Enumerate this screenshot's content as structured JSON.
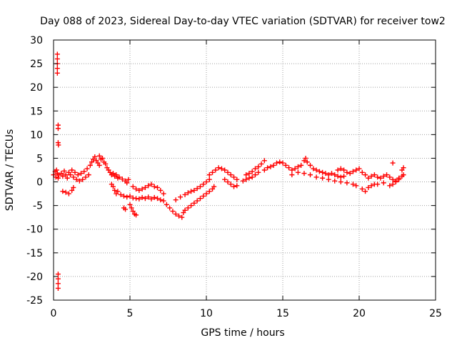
{
  "chart_data": {
    "type": "scatter",
    "title": "Day 088 of 2023, Sidereal Day-to-day VTEC variation (SDTVAR) for receiver tow2",
    "xlabel": "GPS time / hours",
    "ylabel": "SDTVAR / TECUs",
    "xlim": [
      0,
      25
    ],
    "ylim": [
      -25,
      30
    ],
    "xticks": [
      0,
      5,
      10,
      15,
      20,
      25
    ],
    "yticks": [
      -25,
      -20,
      -15,
      -10,
      -5,
      0,
      5,
      10,
      15,
      20,
      25,
      30
    ],
    "grid": true,
    "marker": "plus",
    "color": "#ff0000",
    "series": [
      {
        "name": "SDTVAR",
        "points": [
          [
            0.0,
            1.5
          ],
          [
            0.1,
            2.2
          ],
          [
            0.15,
            1.0
          ],
          [
            0.2,
            2.5
          ],
          [
            0.25,
            1.8
          ],
          [
            0.3,
            0.8
          ],
          [
            0.35,
            1.5
          ],
          [
            0.25,
            27.0
          ],
          [
            0.25,
            26.0
          ],
          [
            0.25,
            25.0
          ],
          [
            0.25,
            24.0
          ],
          [
            0.25,
            23.0
          ],
          [
            0.3,
            12.0
          ],
          [
            0.3,
            11.3
          ],
          [
            0.3,
            8.3
          ],
          [
            0.32,
            7.8
          ],
          [
            0.3,
            -19.5
          ],
          [
            0.3,
            -20.5
          ],
          [
            0.3,
            -21.5
          ],
          [
            0.3,
            -22.5
          ],
          [
            0.5,
            1.8
          ],
          [
            0.6,
            1.2
          ],
          [
            0.7,
            2.3
          ],
          [
            0.8,
            1.5
          ],
          [
            0.9,
            0.8
          ],
          [
            1.0,
            2.0
          ],
          [
            0.6,
            -2.0
          ],
          [
            0.8,
            -2.2
          ],
          [
            1.0,
            -2.5
          ],
          [
            1.2,
            -1.8
          ],
          [
            1.3,
            -1.2
          ],
          [
            1.1,
            1.5
          ],
          [
            1.3,
            1.0
          ],
          [
            1.5,
            0.5
          ],
          [
            1.7,
            0.2
          ],
          [
            1.9,
            0.5
          ],
          [
            2.1,
            1.0
          ],
          [
            2.3,
            1.5
          ],
          [
            1.2,
            2.5
          ],
          [
            1.4,
            2.0
          ],
          [
            1.6,
            1.5
          ],
          [
            1.8,
            1.8
          ],
          [
            2.0,
            2.2
          ],
          [
            2.2,
            2.8
          ],
          [
            2.4,
            3.5
          ],
          [
            2.5,
            4.2
          ],
          [
            2.6,
            4.8
          ],
          [
            2.7,
            5.3
          ],
          [
            2.8,
            4.5
          ],
          [
            2.9,
            4.0
          ],
          [
            3.0,
            3.5
          ],
          [
            3.0,
            5.5
          ],
          [
            3.1,
            4.8
          ],
          [
            3.2,
            5.0
          ],
          [
            3.3,
            4.2
          ],
          [
            3.4,
            3.8
          ],
          [
            3.5,
            3.0
          ],
          [
            3.6,
            2.5
          ],
          [
            3.7,
            2.0
          ],
          [
            3.8,
            1.5
          ],
          [
            3.9,
            1.8
          ],
          [
            4.0,
            1.2
          ],
          [
            4.1,
            1.5
          ],
          [
            4.2,
            0.8
          ],
          [
            4.3,
            1.0
          ],
          [
            4.5,
            0.6
          ],
          [
            4.7,
            0.2
          ],
          [
            4.8,
            -0.2
          ],
          [
            4.9,
            0.5
          ],
          [
            3.8,
            -0.5
          ],
          [
            3.9,
            -1.0
          ],
          [
            4.0,
            -1.8
          ],
          [
            4.1,
            -2.5
          ],
          [
            4.2,
            -2.0
          ],
          [
            4.4,
            -2.7
          ],
          [
            4.6,
            -3.0
          ],
          [
            4.8,
            -3.2
          ],
          [
            5.0,
            -3.0
          ],
          [
            5.2,
            -3.4
          ],
          [
            5.4,
            -3.5
          ],
          [
            5.6,
            -3.6
          ],
          [
            5.8,
            -3.3
          ],
          [
            6.0,
            -3.5
          ],
          [
            6.2,
            -3.2
          ],
          [
            6.4,
            -3.6
          ],
          [
            6.6,
            -3.3
          ],
          [
            6.8,
            -3.5
          ],
          [
            7.0,
            -3.8
          ],
          [
            4.6,
            -5.5
          ],
          [
            4.7,
            -5.8
          ],
          [
            5.0,
            -4.8
          ],
          [
            5.1,
            -5.5
          ],
          [
            5.2,
            -6.2
          ],
          [
            5.3,
            -6.8
          ],
          [
            5.4,
            -7.0
          ],
          [
            5.2,
            -1.0
          ],
          [
            5.4,
            -1.5
          ],
          [
            5.6,
            -1.8
          ],
          [
            5.8,
            -1.5
          ],
          [
            6.0,
            -1.2
          ],
          [
            6.2,
            -0.8
          ],
          [
            6.4,
            -0.5
          ],
          [
            6.6,
            -1.0
          ],
          [
            6.8,
            -1.2
          ],
          [
            7.0,
            -1.8
          ],
          [
            7.2,
            -2.5
          ],
          [
            7.2,
            -4.0
          ],
          [
            7.4,
            -4.8
          ],
          [
            7.6,
            -5.5
          ],
          [
            7.8,
            -6.2
          ],
          [
            8.0,
            -6.8
          ],
          [
            8.2,
            -7.2
          ],
          [
            8.4,
            -7.5
          ],
          [
            8.5,
            -6.5
          ],
          [
            8.6,
            -6.0
          ],
          [
            8.8,
            -5.5
          ],
          [
            9.0,
            -5.0
          ],
          [
            9.2,
            -4.5
          ],
          [
            9.4,
            -4.0
          ],
          [
            9.6,
            -3.5
          ],
          [
            9.8,
            -3.0
          ],
          [
            10.0,
            -2.5
          ],
          [
            10.2,
            -2.0
          ],
          [
            10.4,
            -1.5
          ],
          [
            10.5,
            -1.0
          ],
          [
            8.0,
            -3.8
          ],
          [
            8.3,
            -3.2
          ],
          [
            8.6,
            -2.7
          ],
          [
            8.8,
            -2.3
          ],
          [
            9.0,
            -2.0
          ],
          [
            9.2,
            -1.8
          ],
          [
            9.4,
            -1.4
          ],
          [
            9.6,
            -1.0
          ],
          [
            9.8,
            -0.5
          ],
          [
            10.0,
            0.0
          ],
          [
            10.2,
            0.5
          ],
          [
            10.2,
            1.5
          ],
          [
            10.4,
            2.0
          ],
          [
            10.6,
            2.5
          ],
          [
            10.8,
            3.0
          ],
          [
            11.0,
            2.8
          ],
          [
            11.2,
            2.5
          ],
          [
            11.4,
            2.0
          ],
          [
            11.6,
            1.5
          ],
          [
            11.8,
            1.0
          ],
          [
            12.0,
            0.5
          ],
          [
            11.2,
            0.5
          ],
          [
            11.4,
            0.0
          ],
          [
            11.6,
            -0.5
          ],
          [
            11.8,
            -1.0
          ],
          [
            12.0,
            -0.8
          ],
          [
            12.4,
            0.2
          ],
          [
            12.6,
            0.5
          ],
          [
            12.8,
            0.8
          ],
          [
            13.0,
            1.0
          ],
          [
            13.2,
            1.5
          ],
          [
            13.4,
            2.0
          ],
          [
            12.6,
            1.5
          ],
          [
            12.8,
            1.8
          ],
          [
            13.0,
            2.2
          ],
          [
            13.2,
            2.8
          ],
          [
            13.4,
            3.2
          ],
          [
            13.6,
            3.8
          ],
          [
            13.8,
            4.5
          ],
          [
            13.8,
            2.5
          ],
          [
            14.0,
            3.0
          ],
          [
            14.2,
            3.2
          ],
          [
            14.4,
            3.5
          ],
          [
            14.6,
            4.0
          ],
          [
            14.8,
            4.2
          ],
          [
            15.0,
            4.0
          ],
          [
            15.2,
            3.5
          ],
          [
            15.4,
            3.0
          ],
          [
            15.6,
            2.5
          ],
          [
            15.8,
            2.8
          ],
          [
            16.0,
            3.2
          ],
          [
            16.2,
            3.5
          ],
          [
            16.4,
            4.5
          ],
          [
            16.5,
            5.0
          ],
          [
            16.6,
            4.2
          ],
          [
            16.8,
            3.5
          ],
          [
            17.0,
            2.8
          ],
          [
            17.2,
            2.5
          ],
          [
            17.4,
            2.2
          ],
          [
            17.6,
            2.0
          ],
          [
            17.8,
            1.8
          ],
          [
            18.0,
            1.5
          ],
          [
            18.2,
            1.8
          ],
          [
            18.4,
            1.5
          ],
          [
            18.6,
            1.2
          ],
          [
            18.8,
            1.0
          ],
          [
            19.0,
            1.2
          ],
          [
            15.6,
            1.5
          ],
          [
            16.0,
            2.0
          ],
          [
            16.4,
            1.8
          ],
          [
            16.8,
            1.5
          ],
          [
            17.2,
            1.0
          ],
          [
            17.6,
            0.8
          ],
          [
            18.0,
            0.5
          ],
          [
            18.4,
            0.2
          ],
          [
            18.8,
            0.0
          ],
          [
            19.2,
            -0.2
          ],
          [
            19.6,
            -0.5
          ],
          [
            19.8,
            -0.8
          ],
          [
            18.6,
            2.5
          ],
          [
            18.8,
            2.8
          ],
          [
            19.0,
            2.5
          ],
          [
            19.2,
            2.0
          ],
          [
            19.4,
            1.8
          ],
          [
            19.6,
            2.2
          ],
          [
            19.8,
            2.5
          ],
          [
            20.0,
            2.8
          ],
          [
            20.2,
            2.0
          ],
          [
            20.4,
            1.5
          ],
          [
            20.2,
            -1.5
          ],
          [
            20.4,
            -2.0
          ],
          [
            20.6,
            -1.2
          ],
          [
            20.8,
            -0.8
          ],
          [
            21.0,
            -0.5
          ],
          [
            20.6,
            0.8
          ],
          [
            20.8,
            1.2
          ],
          [
            21.0,
            1.5
          ],
          [
            21.2,
            1.0
          ],
          [
            21.4,
            0.8
          ],
          [
            21.6,
            1.2
          ],
          [
            21.8,
            1.5
          ],
          [
            22.0,
            1.0
          ],
          [
            22.2,
            0.5
          ],
          [
            22.4,
            0.2
          ],
          [
            22.6,
            0.8
          ],
          [
            22.8,
            1.2
          ],
          [
            21.2,
            -0.5
          ],
          [
            21.6,
            -0.2
          ],
          [
            22.0,
            -0.8
          ],
          [
            22.2,
            -0.5
          ],
          [
            22.4,
            0.0
          ],
          [
            22.6,
            0.5
          ],
          [
            22.2,
            4.0
          ],
          [
            22.8,
            2.5
          ],
          [
            22.9,
            1.5
          ],
          [
            22.9,
            3.0
          ]
        ]
      }
    ]
  }
}
